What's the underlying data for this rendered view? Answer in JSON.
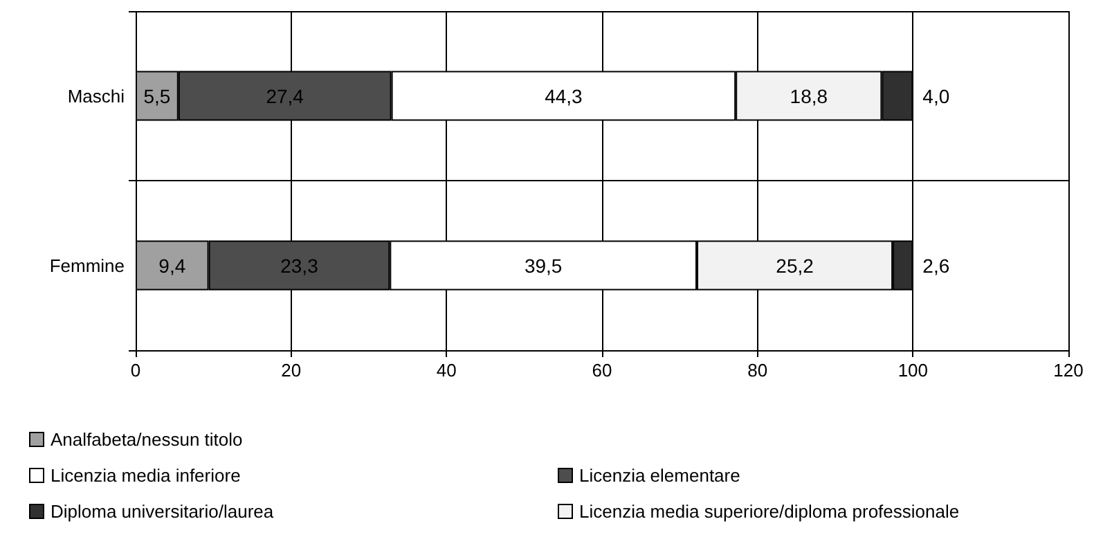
{
  "chart_data": {
    "type": "bar",
    "orientation": "horizontal",
    "stacked": true,
    "categories": [
      "Maschi",
      "Femmine"
    ],
    "xlim": [
      0,
      120
    ],
    "xticks": [
      0,
      20,
      40,
      60,
      80,
      100,
      120
    ],
    "grid": true,
    "legend": "bottom",
    "series": [
      {
        "name": "Analfabeta/nessun titolo",
        "color": "#a0a0a0",
        "values": [
          5.5,
          9.4
        ],
        "value_labels": [
          "5,5",
          "9,4"
        ]
      },
      {
        "name": "Licenzia elementare",
        "color": "#4d4d4d",
        "values": [
          27.4,
          23.3
        ],
        "value_labels": [
          "27,4",
          "23,3"
        ]
      },
      {
        "name": "Licenzia media inferiore",
        "color": "#ffffff",
        "values": [
          44.3,
          39.5
        ],
        "value_labels": [
          "44,3",
          "39,5"
        ]
      },
      {
        "name": "Licenzia media superiore/diploma professionale",
        "color": "#f2f2f2",
        "values": [
          18.8,
          25.2
        ],
        "value_labels": [
          "18,8",
          "25,2"
        ]
      },
      {
        "name": "Diploma universitario/laurea",
        "color": "#303030",
        "values": [
          4.0,
          2.6
        ],
        "value_labels": [
          "4,0",
          "2,6"
        ]
      }
    ]
  }
}
